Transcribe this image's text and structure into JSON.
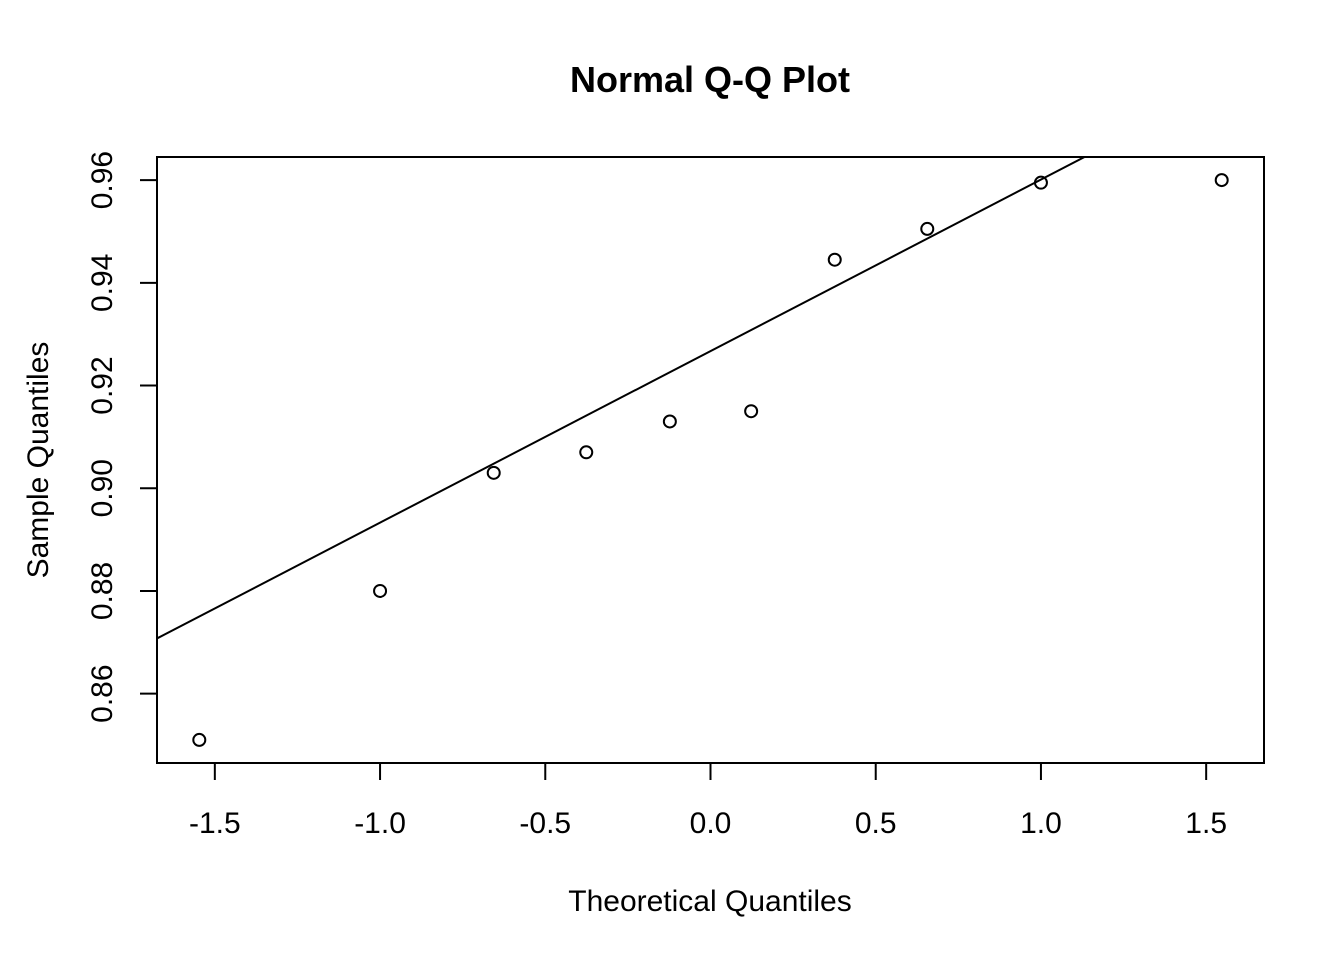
{
  "chart_data": {
    "type": "scatter",
    "title": "Normal Q-Q Plot",
    "xlabel": "Theoretical Quantiles",
    "ylabel": "Sample Quantiles",
    "xlim": [
      -1.675,
      1.675
    ],
    "ylim": [
      0.8465,
      0.9645
    ],
    "x_ticks": [
      -1.5,
      -1.0,
      -0.5,
      0.0,
      0.5,
      1.0,
      1.5
    ],
    "x_tick_labels": [
      "-1.5",
      "-1.0",
      "-0.5",
      "0.0",
      "0.5",
      "1.0",
      "1.5"
    ],
    "y_ticks": [
      0.86,
      0.88,
      0.9,
      0.92,
      0.94,
      0.96
    ],
    "y_tick_labels": [
      "0.86",
      "0.88",
      "0.90",
      "0.92",
      "0.94",
      "0.96"
    ],
    "grid": false,
    "points": {
      "x": [
        -1.547,
        -1.0,
        -0.656,
        -0.376,
        -0.123,
        0.123,
        0.376,
        0.656,
        1.0,
        1.547
      ],
      "y": [
        0.851,
        0.88,
        0.903,
        0.907,
        0.913,
        0.915,
        0.9445,
        0.9505,
        0.9595,
        0.96
      ]
    },
    "reference_line": {
      "intercept": 0.9267,
      "slope": 0.0334
    },
    "colors": {
      "points": "#000000",
      "line": "#000000",
      "background": "#ffffff"
    }
  }
}
